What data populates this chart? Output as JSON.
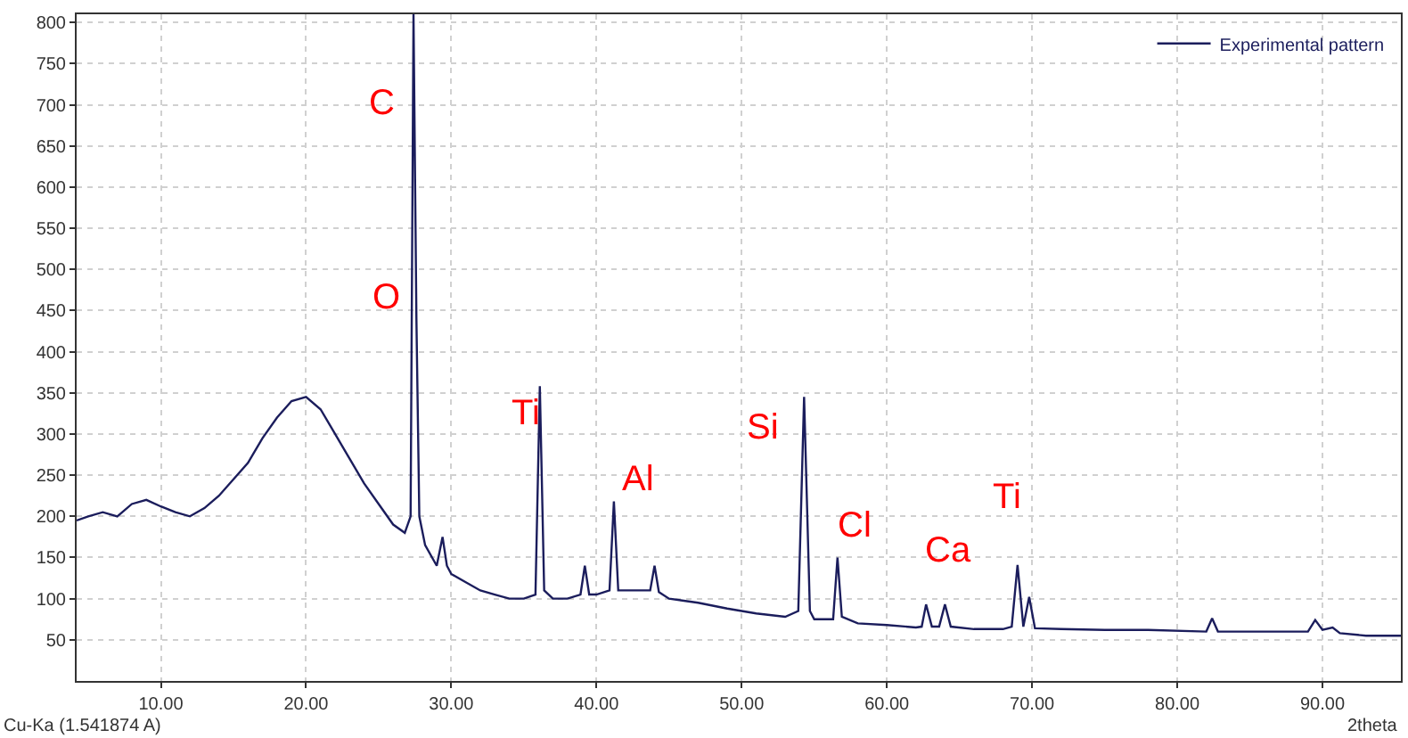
{
  "chart_data": {
    "type": "line",
    "xlabel": "2theta",
    "x": [
      4.2,
      5,
      6,
      7,
      8,
      9,
      10,
      11,
      12,
      13,
      14,
      15,
      16,
      17,
      18,
      19,
      20,
      21,
      22,
      23,
      24,
      25,
      26,
      26.8,
      27.2,
      27.4,
      27.6,
      27.8,
      28.2,
      29,
      29.4,
      29.7,
      30,
      31,
      32,
      33,
      34,
      35,
      35.8,
      36.1,
      36.4,
      37,
      38,
      38.9,
      39.2,
      39.5,
      40,
      40.9,
      41.2,
      41.5,
      42,
      43,
      43.7,
      44,
      44.3,
      45,
      47,
      49,
      51,
      53,
      53.9,
      54.3,
      54.7,
      55,
      56.3,
      56.6,
      56.9,
      58,
      60,
      62,
      62.4,
      62.7,
      63.1,
      63.6,
      64,
      64.4,
      66,
      68,
      68.6,
      69,
      69.4,
      69.8,
      70.2,
      72,
      75,
      78,
      82,
      82.4,
      82.8,
      86,
      89,
      89.5,
      90,
      90.7,
      91.2,
      93,
      95.4
    ],
    "series": [
      {
        "name": "Experimental pattern",
        "color": "#1b1d5c",
        "values": [
          195,
          200,
          205,
          200,
          215,
          220,
          212,
          205,
          200,
          210,
          225,
          245,
          265,
          295,
          320,
          340,
          345,
          330,
          300,
          270,
          240,
          215,
          190,
          180,
          200,
          810,
          440,
          200,
          165,
          140,
          175,
          140,
          130,
          120,
          110,
          105,
          100,
          100,
          105,
          358,
          110,
          100,
          100,
          105,
          140,
          105,
          105,
          110,
          218,
          110,
          110,
          110,
          110,
          140,
          108,
          100,
          95,
          88,
          82,
          78,
          85,
          345,
          85,
          75,
          75,
          150,
          78,
          70,
          68,
          65,
          66,
          93,
          66,
          66,
          93,
          66,
          63,
          63,
          66,
          141,
          66,
          102,
          64,
          63,
          62,
          62,
          60,
          76,
          60,
          60,
          60,
          74,
          62,
          65,
          58,
          55,
          55
        ]
      }
    ],
    "xlim": [
      4.2,
      95.4
    ],
    "ylim": [
      0,
      810
    ],
    "xticks": [
      {
        "value": 10,
        "label": "10.00"
      },
      {
        "value": 20,
        "label": "20.00"
      },
      {
        "value": 30,
        "label": "30.00"
      },
      {
        "value": 40,
        "label": "40.00"
      },
      {
        "value": 50,
        "label": "50.00"
      },
      {
        "value": 60,
        "label": "60.00"
      },
      {
        "value": 70,
        "label": "70.00"
      },
      {
        "value": 80,
        "label": "80.00"
      },
      {
        "value": 90,
        "label": "90.00"
      }
    ],
    "yticks": [
      50,
      100,
      150,
      200,
      250,
      300,
      350,
      400,
      450,
      500,
      550,
      600,
      650,
      700,
      750,
      800
    ],
    "grid": true,
    "legend": "top right",
    "marker": "none",
    "line_style": "solid",
    "annotations": [
      "C",
      "O",
      "Ti",
      "Al",
      "Si",
      "Cl",
      "Ca",
      "Ti",
      "Cu-Ka (1.541874 A)"
    ]
  }
}
